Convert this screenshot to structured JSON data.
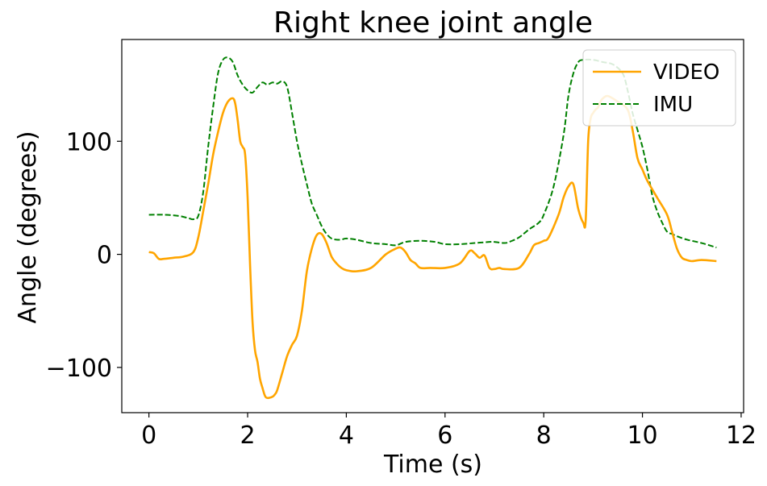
{
  "chart_data": {
    "type": "line",
    "title": "Right knee joint angle",
    "xlabel": "Time (s)",
    "ylabel": "Angle (degrees)",
    "xlim": [
      -0.55,
      12.05
    ],
    "ylim": [
      -140,
      190
    ],
    "xticks": [
      0,
      2,
      4,
      6,
      8,
      10,
      12
    ],
    "xtick_labels": [
      "0",
      "2",
      "4",
      "6",
      "8",
      "10",
      "12"
    ],
    "yticks": [
      -100,
      0,
      100
    ],
    "ytick_labels": [
      "−100",
      "0",
      "100"
    ],
    "grid": false,
    "legend_position": "top-right",
    "series": [
      {
        "name": "VIDEO",
        "color": "#FFA500",
        "style": "solid",
        "x": [
          0.0,
          0.1,
          0.2,
          0.3,
          0.5,
          0.7,
          0.9,
          1.0,
          1.1,
          1.2,
          1.3,
          1.4,
          1.5,
          1.6,
          1.7,
          1.75,
          1.8,
          1.85,
          1.9,
          1.95,
          2.0,
          2.05,
          2.1,
          2.15,
          2.2,
          2.25,
          2.3,
          2.35,
          2.4,
          2.5,
          2.55,
          2.6,
          2.7,
          2.8,
          2.9,
          3.0,
          3.1,
          3.2,
          3.3,
          3.4,
          3.5,
          3.6,
          3.7,
          3.8,
          3.9,
          4.0,
          4.2,
          4.5,
          4.8,
          5.0,
          5.1,
          5.2,
          5.3,
          5.4,
          5.5,
          5.7,
          6.0,
          6.3,
          6.5,
          6.6,
          6.7,
          6.8,
          6.9,
          7.0,
          7.1,
          7.2,
          7.5,
          7.7,
          7.8,
          7.9,
          8.0,
          8.1,
          8.3,
          8.4,
          8.5,
          8.6,
          8.7,
          8.8,
          8.85,
          8.9,
          8.95,
          9.0,
          9.05,
          9.1,
          9.15,
          9.2,
          9.3,
          9.5,
          9.7,
          9.8,
          9.9,
          10.0,
          10.1,
          10.3,
          10.5,
          10.6,
          10.7,
          10.8,
          10.9,
          11.0,
          11.2,
          11.5
        ],
        "y": [
          2,
          1,
          -4,
          -4,
          -3,
          -2,
          2,
          15,
          38,
          62,
          88,
          108,
          125,
          135,
          138,
          133,
          118,
          100,
          95,
          88,
          50,
          -10,
          -60,
          -85,
          -95,
          -110,
          -118,
          -125,
          -127,
          -126,
          -124,
          -120,
          -105,
          -90,
          -80,
          -72,
          -50,
          -15,
          5,
          17,
          18,
          10,
          -2,
          -8,
          -12,
          -14,
          -15,
          -12,
          0,
          5,
          6,
          2,
          -5,
          -8,
          -12,
          -12,
          -12,
          -8,
          3,
          1,
          -3,
          -1,
          -12,
          -13,
          -12,
          -13,
          -12,
          0,
          8,
          10,
          12,
          15,
          35,
          50,
          60,
          62,
          40,
          28,
          30,
          100,
          120,
          125,
          128,
          130,
          135,
          138,
          140,
          135,
          128,
          110,
          85,
          75,
          65,
          50,
          35,
          20,
          5,
          -3,
          -5,
          -6,
          -5,
          -6
        ]
      },
      {
        "name": "IMU",
        "color": "#008000",
        "style": "dashed",
        "x": [
          0.0,
          0.3,
          0.6,
          0.8,
          0.9,
          1.0,
          1.1,
          1.2,
          1.3,
          1.4,
          1.5,
          1.6,
          1.7,
          1.8,
          1.9,
          2.0,
          2.1,
          2.2,
          2.3,
          2.4,
          2.5,
          2.6,
          2.7,
          2.8,
          2.9,
          3.0,
          3.1,
          3.2,
          3.3,
          3.4,
          3.5,
          3.6,
          3.7,
          3.8,
          3.9,
          4.0,
          4.2,
          4.5,
          4.8,
          5.0,
          5.2,
          5.5,
          5.8,
          6.0,
          6.3,
          6.6,
          6.9,
          7.0,
          7.2,
          7.3,
          7.5,
          7.7,
          7.9,
          8.0,
          8.2,
          8.4,
          8.5,
          8.6,
          8.7,
          8.8,
          9.0,
          9.2,
          9.4,
          9.6,
          9.7,
          9.8,
          9.9,
          10.0,
          10.1,
          10.2,
          10.3,
          10.4,
          10.5,
          10.6,
          10.7,
          10.9,
          11.2,
          11.5
        ],
        "y": [
          35,
          35,
          34,
          32,
          31,
          34,
          55,
          95,
          130,
          160,
          172,
          174,
          170,
          158,
          150,
          145,
          143,
          148,
          152,
          150,
          152,
          151,
          153,
          148,
          125,
          100,
          80,
          62,
          45,
          35,
          25,
          18,
          14,
          13,
          13,
          14,
          13,
          10,
          9,
          8,
          11,
          12,
          11,
          9,
          9,
          10,
          11,
          11,
          10,
          11,
          15,
          22,
          28,
          35,
          60,
          105,
          140,
          160,
          170,
          172,
          172,
          170,
          168,
          160,
          145,
          125,
          110,
          95,
          75,
          52,
          38,
          28,
          20,
          18,
          16,
          13,
          10,
          6
        ]
      }
    ]
  }
}
